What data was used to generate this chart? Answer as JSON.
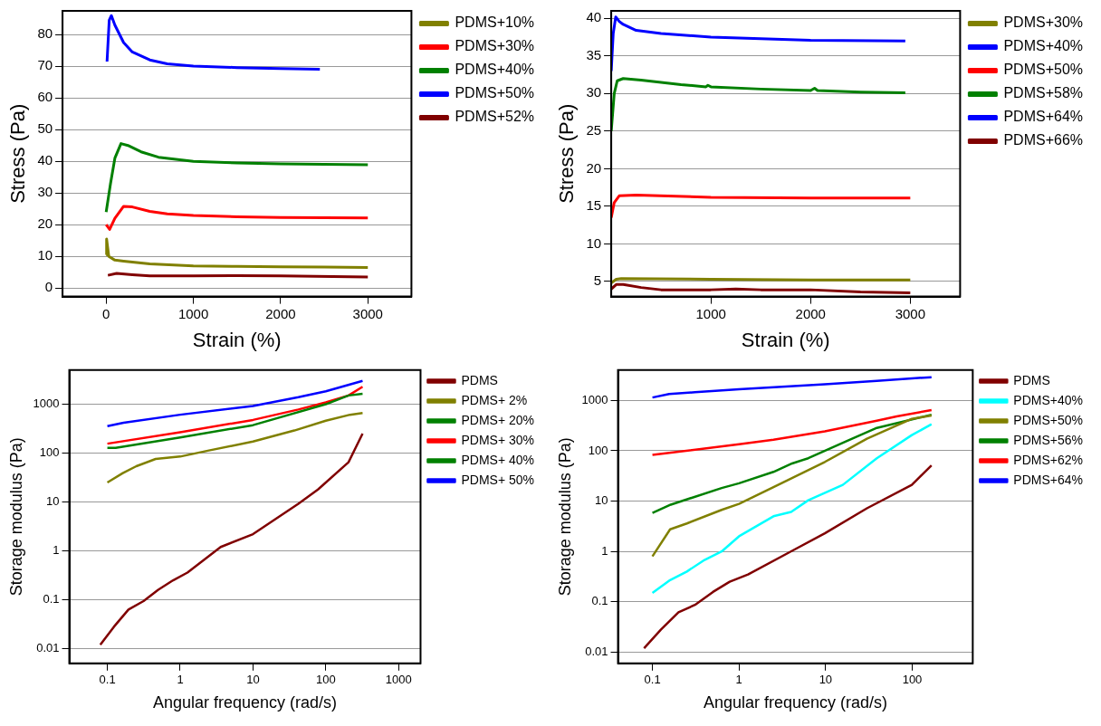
{
  "chart_data": [
    {
      "type": "line",
      "xlabel": "Strain (%)",
      "ylabel": "Stress (Pa)",
      "xlim": [
        -500,
        3500
      ],
      "ylim": [
        -2.7,
        87.5
      ],
      "xticks": [
        0,
        1000,
        2000,
        3000
      ],
      "yticks": [
        0,
        10,
        20,
        30,
        40,
        50,
        60,
        70,
        80
      ],
      "grid": "y",
      "legend": "top right",
      "marker": "none",
      "line_style": "solid",
      "series": [
        {
          "name": "PDMS+10%",
          "color": "#808000",
          "x": [
            0,
            5,
            30,
            100,
            200,
            500,
            1000,
            1500,
            2000,
            2500,
            3000
          ],
          "values": [
            10.5,
            15.5,
            10,
            8.8,
            8.5,
            7.6,
            7,
            6.8,
            6.7,
            6.6,
            6.5
          ]
        },
        {
          "name": "PDMS+30%",
          "color": "#ff0000",
          "x": [
            0,
            40,
            100,
            200,
            300,
            500,
            700,
            1000,
            1500,
            2000,
            3000
          ],
          "values": [
            20,
            18.5,
            22,
            25.8,
            25.6,
            24.2,
            23.4,
            22.9,
            22.5,
            22.3,
            22.1
          ]
        },
        {
          "name": "PDMS+40%",
          "color": "#008000",
          "x": [
            0,
            50,
            100,
            170,
            250,
            400,
            600,
            1000,
            1500,
            2000,
            3000
          ],
          "values": [
            24,
            33,
            41,
            45.6,
            45,
            43,
            41.3,
            40,
            39.5,
            39.2,
            38.9
          ]
        },
        {
          "name": "PDMS+50%",
          "color": "#0000ff",
          "x": [
            10,
            35,
            60,
            100,
            200,
            300,
            500,
            700,
            1000,
            1500,
            2000,
            2450
          ],
          "values": [
            71.5,
            84.5,
            86,
            83,
            77.5,
            74.5,
            72,
            70.8,
            70.1,
            69.6,
            69.3,
            69.1
          ]
        },
        {
          "name": "PDMS+52%",
          "color": "#800000",
          "x": [
            20,
            120,
            300,
            500,
            1000,
            1500,
            2000,
            3000
          ],
          "values": [
            4,
            4.6,
            4.2,
            3.8,
            3.8,
            3.9,
            3.8,
            3.5
          ]
        }
      ]
    },
    {
      "type": "line",
      "xlabel": "Strain (%)",
      "ylabel": "Stress (Pa)",
      "xlim": [
        0,
        3500
      ],
      "ylim": [
        3,
        41
      ],
      "xticks": [
        1000,
        2000,
        3000
      ],
      "yticks": [
        5,
        10,
        15,
        20,
        25,
        30,
        35,
        40
      ],
      "grid": "y",
      "legend": "top right",
      "marker": "none",
      "line_style": "solid",
      "series": [
        {
          "name": "PDMS+30%",
          "color": "#808000",
          "x": [
            0,
            50,
            100,
            1000,
            2000,
            3000
          ],
          "values": [
            4.8,
            5.3,
            5.4,
            5.3,
            5.2,
            5.2
          ]
        },
        {
          "name": "PDMS+40%",
          "color": "#0000ff"
        },
        {
          "name": "PDMS+50%",
          "color": "#ff0000",
          "x": [
            0,
            30,
            80,
            250,
            1000,
            2000,
            3000
          ],
          "values": [
            13.5,
            15.5,
            16.4,
            16.5,
            16.2,
            16.1,
            16.1
          ]
        },
        {
          "name": "PDMS+58%",
          "color": "#008000",
          "x": [
            0,
            30,
            60,
            120,
            300,
            700,
            950,
            970,
            1000,
            1500,
            2000,
            2040,
            2070,
            2500,
            2950
          ],
          "values": [
            25,
            30,
            31.7,
            32,
            31.8,
            31.2,
            30.9,
            31.1,
            30.9,
            30.6,
            30.4,
            30.7,
            30.4,
            30.2,
            30.1
          ]
        },
        {
          "name": "PDMS+64%",
          "color": "#0000ff",
          "x": [
            0,
            20,
            45,
            80,
            120,
            250,
            500,
            1000,
            1500,
            2000,
            2950
          ],
          "values": [
            33,
            38,
            40.2,
            39.6,
            39.2,
            38.4,
            38,
            37.5,
            37.3,
            37.1,
            37
          ]
        },
        {
          "name": "PDMS+66%",
          "color": "#800000",
          "x": [
            0,
            50,
            120,
            300,
            500,
            1000,
            1250,
            1500,
            2000,
            2500,
            3000
          ],
          "values": [
            4,
            4.6,
            4.6,
            4.2,
            3.9,
            3.9,
            4,
            3.9,
            3.9,
            3.6,
            3.5
          ]
        }
      ]
    },
    {
      "type": "line",
      "xlabel": "Angular frequency (rad/s)",
      "ylabel": "Storage modulus (Pa)",
      "log": "xy",
      "xlim": [
        0.03,
        2000
      ],
      "ylim": [
        0.005,
        5000
      ],
      "xticks": [
        0.1,
        1,
        10,
        100,
        1000
      ],
      "yticks": [
        0.01,
        0.1,
        1,
        10,
        100,
        1000
      ],
      "grid": "y",
      "legend": "top right",
      "marker": "none",
      "line_style": "solid",
      "series": [
        {
          "name": "PDMS",
          "color": "#800000",
          "x": [
            0.08,
            0.123,
            0.195,
            0.314,
            0.5,
            0.8,
            1.26,
            3.6,
            10,
            42,
            78,
            205,
            320
          ],
          "values": [
            0.012,
            0.028,
            0.063,
            0.094,
            0.16,
            0.25,
            0.36,
            1.2,
            2.2,
            9.2,
            18,
            65,
            250
          ]
        },
        {
          "name": "PDMS+ 2%",
          "color": "#808000",
          "x": [
            0.1,
            0.163,
            0.25,
            0.46,
            1,
            2.4,
            10,
            37,
            100,
            215,
            320
          ],
          "values": [
            25,
            39,
            54,
            76,
            85,
            112,
            172,
            290,
            460,
            610,
            660
          ]
        },
        {
          "name": "PDMS+ 20%",
          "color": "#008000",
          "x": [
            0.1,
            0.13,
            1,
            10,
            100,
            205,
            320
          ],
          "values": [
            128,
            128,
            210,
            373,
            1000,
            1510,
            1640
          ]
        },
        {
          "name": "PDMS+ 30%",
          "color": "#ff0000",
          "x": [
            0.1,
            1,
            10,
            42,
            100,
            205,
            320
          ],
          "values": [
            156,
            268,
            477,
            780,
            1090,
            1510,
            2280
          ]
        },
        {
          "name": "PDMS+ 40%",
          "color": "#008000"
        },
        {
          "name": "PDMS+ 50%",
          "color": "#0000ff",
          "x": [
            0.1,
            0.167,
            1,
            10,
            42,
            100,
            320
          ],
          "values": [
            355,
            418,
            610,
            920,
            1390,
            1840,
            3010
          ]
        }
      ]
    },
    {
      "type": "line",
      "xlabel": "Angular frequency (rad/s)",
      "ylabel": "Storage modulus (Pa)",
      "log": "xy",
      "xlim": [
        0.04,
        500
      ],
      "ylim": [
        0.006,
        4000
      ],
      "xticks": [
        0.1,
        1,
        10,
        100
      ],
      "yticks": [
        0.01,
        0.1,
        1,
        10,
        100,
        1000
      ],
      "grid": "y",
      "legend": "top right",
      "marker": "none",
      "line_style": "solid",
      "series": [
        {
          "name": "PDMS",
          "color": "#800000",
          "x": [
            0.08,
            0.125,
            0.2,
            0.31,
            0.5,
            0.78,
            1.27,
            4.1,
            9.8,
            30,
            99,
            167
          ],
          "values": [
            0.012,
            0.028,
            0.062,
            0.087,
            0.157,
            0.25,
            0.35,
            1.03,
            2.3,
            7.2,
            21,
            51
          ]
        },
        {
          "name": "PDMS+40%",
          "color": "#00ffff",
          "x": [
            0.1,
            0.16,
            0.25,
            0.4,
            0.63,
            1,
            2.5,
            4,
            6.3,
            15.8,
            39,
            99,
            167
          ],
          "values": [
            0.15,
            0.27,
            0.4,
            0.68,
            1,
            2,
            5,
            6.1,
            10.4,
            21,
            71,
            205,
            335
          ]
        },
        {
          "name": "PDMS+50%",
          "color": "#808000",
          "x": [
            0.1,
            0.16,
            0.25,
            0.63,
            1,
            2.5,
            9.8,
            30,
            99,
            167
          ],
          "values": [
            0.8,
            2.75,
            3.6,
            6.7,
            8.8,
            19,
            60,
            174,
            430,
            500
          ]
        },
        {
          "name": "PDMS+56%",
          "color": "#008000",
          "x": [
            0.1,
            0.163,
            0.63,
            1,
            2.5,
            4.1,
            6.3,
            16.7,
            39,
            167
          ],
          "values": [
            5.8,
            8.5,
            18.2,
            22.6,
            38,
            56,
            71,
            150,
            284,
            520
          ]
        },
        {
          "name": "PDMS+62%",
          "color": "#ff0000",
          "x": [
            0.1,
            1,
            2.5,
            9.8,
            39,
            66,
            167
          ],
          "values": [
            83,
            134,
            166,
            242,
            394,
            480,
            643
          ]
        },
        {
          "name": "PDMS+64%",
          "color": "#0000ff",
          "x": [
            0.1,
            0.156,
            0.31,
            1,
            9.8,
            39,
            167
          ],
          "values": [
            1140,
            1340,
            1450,
            1660,
            2080,
            2450,
            2890
          ]
        }
      ]
    }
  ]
}
